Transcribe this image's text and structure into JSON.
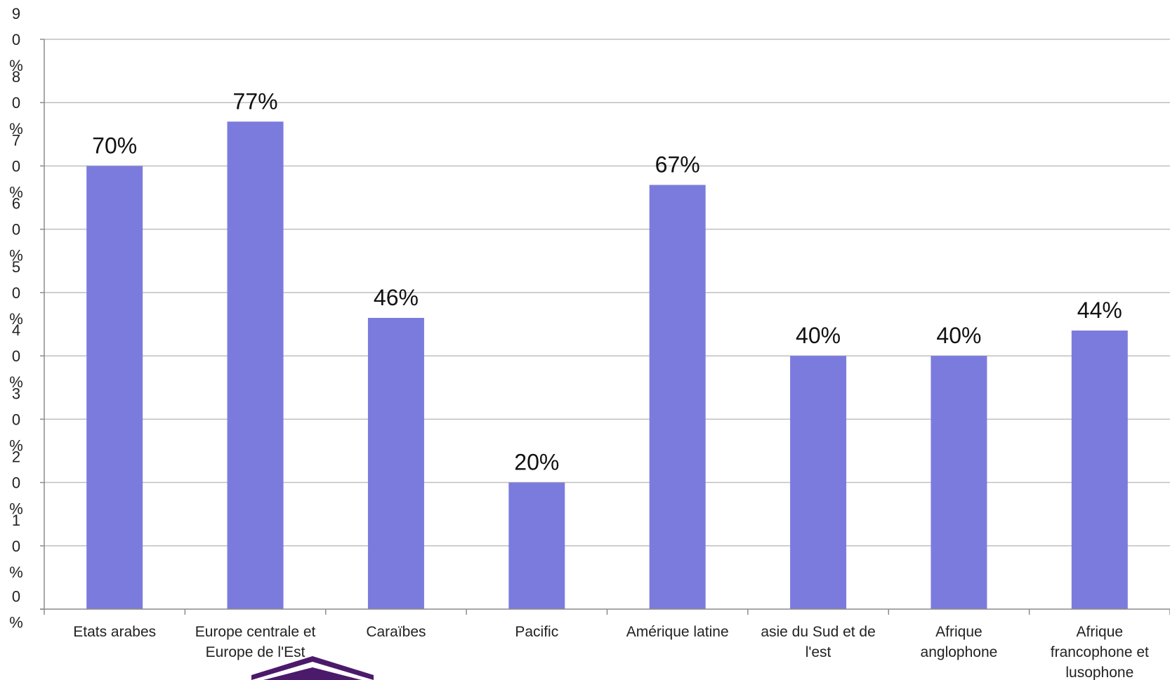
{
  "chart_data": {
    "type": "bar",
    "categories": [
      "Etats arabes",
      "Europe centrale et Europe de l'Est",
      "Caraïbes",
      "Pacific",
      "Amérique latine",
      "asie du Sud et de l'est",
      "Afrique anglophone",
      "Afrique francophone et lusophone"
    ],
    "category_lines": [
      [
        "Etats arabes"
      ],
      [
        "Europe centrale et",
        "Europe de l'Est"
      ],
      [
        "Caraïbes"
      ],
      [
        "Pacific"
      ],
      [
        "Amérique latine"
      ],
      [
        "asie du Sud et de",
        "l'est"
      ],
      [
        "Afrique",
        "anglophone"
      ],
      [
        "Afrique",
        "francophone et",
        "lusophone"
      ]
    ],
    "values": [
      70,
      77,
      46,
      20,
      67,
      40,
      40,
      44
    ],
    "data_labels": [
      "70%",
      "77%",
      "46%",
      "20%",
      "67%",
      "40%",
      "40%",
      "44%"
    ],
    "ylim": [
      0,
      90
    ],
    "yticks": [
      0,
      10,
      20,
      30,
      40,
      50,
      60,
      70,
      80,
      90
    ],
    "ytick_labels": [
      "0%",
      "10%",
      "20%",
      "30%",
      "40%",
      "50%",
      "60%",
      "70%",
      "80%",
      "90%"
    ],
    "title": "",
    "xlabel": "",
    "ylabel": "",
    "grid": true,
    "bar_color": "#7b7bde",
    "grid_color": "#bfbfbf",
    "axis_color": "#8c8c8c",
    "logo_color": "#4b1a6b"
  }
}
